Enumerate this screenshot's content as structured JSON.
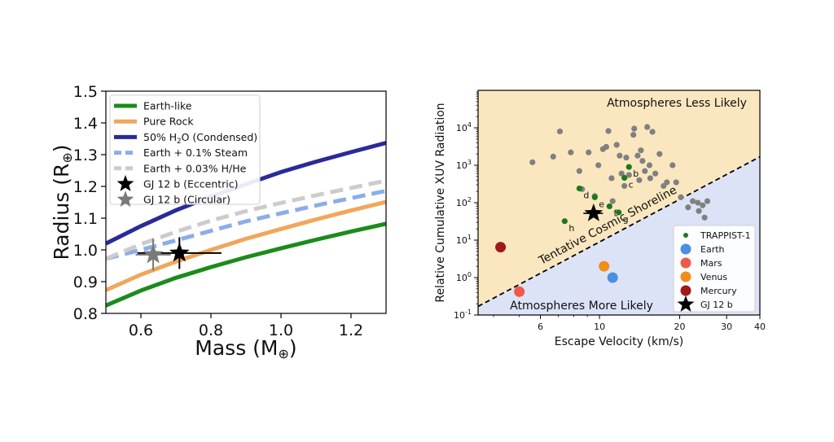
{
  "chart_data": [
    {
      "type": "line",
      "title": "",
      "xlabel": "Mass (M",
      "xlabel_sym": "⊕",
      "xlabel_close": ")",
      "ylabel": "Radius (R",
      "ylabel_sym": "⊕",
      "ylabel_close": ")",
      "xlim": [
        0.5,
        1.3
      ],
      "ylim": [
        0.8,
        1.5
      ],
      "xticks": [
        0.6,
        0.8,
        1.0,
        1.2
      ],
      "xtick_labels": [
        "0.6",
        "0.8",
        "1.0",
        "1.2"
      ],
      "yticks": [
        0.8,
        0.9,
        1.0,
        1.1,
        1.2,
        1.3,
        1.4,
        1.5
      ],
      "ytick_labels": [
        "0.8",
        "0.9",
        "1.0",
        "1.1",
        "1.2",
        "1.3",
        "1.4",
        "1.5"
      ],
      "legend_position": "top-left",
      "series": [
        {
          "name": "Earth-like",
          "color": "#1a8c1a",
          "dash": false,
          "x": [
            0.5,
            0.6,
            0.7,
            0.8,
            0.9,
            1.0,
            1.1,
            1.2,
            1.3
          ],
          "y": [
            0.825,
            0.872,
            0.912,
            0.946,
            0.977,
            1.005,
            1.032,
            1.058,
            1.082
          ]
        },
        {
          "name": "Pure Rock",
          "color": "#f2a65a",
          "dash": false,
          "x": [
            0.5,
            0.6,
            0.7,
            0.8,
            0.9,
            1.0,
            1.1,
            1.2,
            1.3
          ],
          "y": [
            0.873,
            0.922,
            0.963,
            1.0,
            1.035,
            1.066,
            1.096,
            1.124,
            1.151
          ]
        },
        {
          "name": "50% H",
          "name_sub": "2",
          "name_rest": "O (Condensed)",
          "color": "#2a2a9a",
          "dash": false,
          "x": [
            0.5,
            0.6,
            0.7,
            0.8,
            0.9,
            1.0,
            1.1,
            1.2,
            1.3
          ],
          "y": [
            1.02,
            1.075,
            1.125,
            1.168,
            1.207,
            1.245,
            1.278,
            1.308,
            1.337
          ]
        },
        {
          "name": "Earth + 0.1% Steam",
          "color": "#8aaee8",
          "dash": true,
          "x": [
            0.5,
            0.6,
            0.7,
            0.8,
            0.9,
            1.0,
            1.1,
            1.2,
            1.3
          ],
          "y": [
            0.972,
            1.0,
            1.03,
            1.06,
            1.09,
            1.115,
            1.14,
            1.163,
            1.186
          ]
        },
        {
          "name": "Earth + 0.03% H/He",
          "color": "#cccccc",
          "dash": true,
          "x": [
            0.5,
            0.6,
            0.7,
            0.8,
            0.9,
            1.0,
            1.1,
            1.2,
            1.3
          ],
          "y": [
            0.972,
            1.018,
            1.057,
            1.092,
            1.122,
            1.148,
            1.172,
            1.195,
            1.218
          ]
        }
      ],
      "points": [
        {
          "name": "GJ 12 b (Eccentric)",
          "color": "#000000",
          "x": 0.71,
          "y": 0.99,
          "xerr": [
            0.12,
            0.12
          ],
          "yerr": [
            0.05,
            0.05
          ]
        },
        {
          "name": "GJ 12 b (Circular)",
          "color": "#7a7a7a",
          "x": 0.635,
          "y": 0.985,
          "xerr": [
            0.05,
            0.05
          ],
          "yerr": [
            0.05,
            0.05
          ]
        }
      ]
    },
    {
      "type": "scatter",
      "title": "",
      "xlabel": "Escape Velocity (km/s)",
      "ylabel": "Relative Cumulative XUV Radiation",
      "xscale": "log",
      "yscale": "log",
      "xlim": [
        3.5,
        40
      ],
      "ylim_exp": [
        -1,
        5
      ],
      "xticks": [
        6,
        10,
        20,
        30,
        40
      ],
      "xtick_labels": [
        "6",
        "10",
        "20",
        "30",
        "40"
      ],
      "yticks_exp": [
        -1,
        0,
        1,
        2,
        3,
        4
      ],
      "ytick_base": "10",
      "shoreline_label": "Tentative Cosmic Shoreline",
      "shoreline_x": [
        3.5,
        40
      ],
      "shoreline_y": [
        0.17,
        1680
      ],
      "region_upper_label": "Atmospheres Less Likely",
      "region_lower_label": "Atmospheres More Likely",
      "region_upper_color": "#fbe7bf",
      "region_lower_color": "#dde3f6",
      "region_upper_text_color": "#f0a020",
      "region_lower_text_color": "#4a8fdc",
      "legend_position": "bottom-right",
      "background_points": {
        "color": "#808080",
        "x": [
          5.6,
          6.7,
          7.1,
          7.8,
          8.4,
          8.6,
          9.1,
          9.6,
          9.9,
          10.3,
          10.6,
          10.8,
          11.1,
          11.2,
          11.6,
          11.9,
          12.1,
          12.4,
          12.6,
          12.9,
          13.4,
          13.5,
          13.9,
          14.1,
          14.3,
          14.5,
          14.8,
          15.1,
          15.4,
          15.5,
          15.8,
          16.2,
          16.8,
          17.4,
          17.9,
          18.8,
          19.4,
          20.2,
          21.5,
          22.4,
          23.6,
          24.8,
          25.4,
          23.4,
          24.4
        ],
        "y": [
          1200,
          1700,
          8000,
          2200,
          700,
          230,
          2200,
          150,
          1000,
          2700,
          3100,
          8200,
          450,
          110,
          3500,
          1800,
          600,
          280,
          1600,
          550,
          6500,
          9500,
          1800,
          400,
          2500,
          1300,
          700,
          10500,
          1000,
          450,
          7800,
          600,
          2000,
          280,
          350,
          1000,
          350,
          140,
          75,
          110,
          60,
          40,
          110,
          100,
          85
        ]
      },
      "trappist": {
        "name": "TRAPPIST-1",
        "color": "#1a7a1a",
        "points": [
          {
            "label": "b",
            "x": 12.9,
            "y": 900
          },
          {
            "label": "c",
            "x": 12.4,
            "y": 460
          },
          {
            "label": "d",
            "x": 8.4,
            "y": 240
          },
          {
            "label": "e",
            "x": 9.6,
            "y": 140
          },
          {
            "label": "f",
            "x": 10.9,
            "y": 80
          },
          {
            "label": "g",
            "x": 11.8,
            "y": 55
          },
          {
            "label": "h",
            "x": 7.4,
            "y": 32
          }
        ]
      },
      "solar_system": [
        {
          "name": "Earth",
          "color": "#4a8fe0",
          "x": 11.2,
          "y": 1.0
        },
        {
          "name": "Mars",
          "color": "#f0584a",
          "x": 5.0,
          "y": 0.42
        },
        {
          "name": "Venus",
          "color": "#f28c1c",
          "x": 10.4,
          "y": 2.0
        },
        {
          "name": "Mercury",
          "color": "#a01a1a",
          "x": 4.25,
          "y": 6.5
        }
      ],
      "target": {
        "name": "GJ 12 b",
        "color": "#000000",
        "x": 9.5,
        "y": 52,
        "xerr": [
          0.8,
          0.8
        ],
        "yerr": [
          8,
          8
        ]
      }
    }
  ]
}
